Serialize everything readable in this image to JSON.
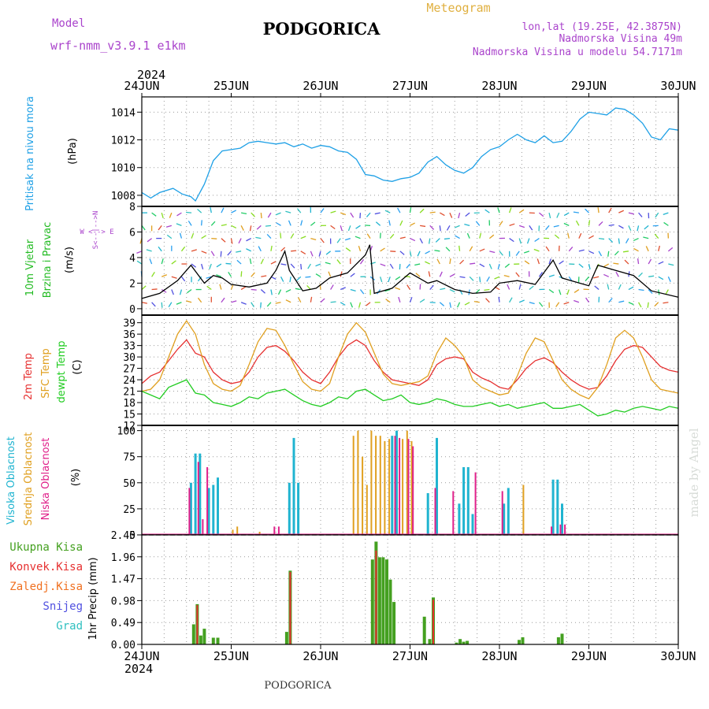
{
  "header": {
    "model_label": "Model",
    "model_name": "wrf-nmm_v3.9.1  e1km",
    "title": "PODGORICA",
    "meteogram_label": "Meteogram",
    "coords": "lon,lat (19.25E, 42.3875N)",
    "elevation": "Nadmorska Visina 49m",
    "model_elevation": "Nadmorska Visina u modelu 54.7171m",
    "year_top": "2024",
    "year_bottom": "2024",
    "footer_title": "PODGORICA",
    "watermark": "made by Angel"
  },
  "colors": {
    "pressure": "#1ea0e6",
    "wind_label": "#22bb22",
    "wind_dir_label": "#aa44cc",
    "temp2m": "#e63030",
    "sfc": "#e0a020",
    "dewpt": "#22cc22",
    "high_cloud": "#20b4d0",
    "mid_cloud": "#e0a020",
    "low_cloud": "#e0208a",
    "total_precip": "#44a020",
    "conv_precip": "#e63030",
    "frozen_precip": "#f07020",
    "snow": "#5050e0",
    "graupel": "#30c0c0",
    "model_text": "#aa44cc",
    "meteogram_text": "#e0b040"
  },
  "chart_data": [
    {
      "type": "line",
      "panel": "pressure",
      "ylabel": "Pritisak na nivou mora",
      "unit": "(hPa)",
      "x_ticks": [
        "24JUN",
        "25JUN",
        "26JUN",
        "27JUN",
        "28JUN",
        "29JUN",
        "30JUN"
      ],
      "ylim": [
        1007.2,
        1015.1
      ],
      "yticks": [
        1008,
        1010,
        1012,
        1014
      ],
      "grid": true,
      "series": [
        {
          "x": [
            0,
            0.1,
            0.2,
            0.35,
            0.45,
            0.55,
            0.6,
            0.7,
            0.8,
            0.9,
            1.0,
            1.1,
            1.2,
            1.3,
            1.4,
            1.5,
            1.6,
            1.7,
            1.8,
            1.9,
            2.0,
            2.1,
            2.2,
            2.3,
            2.4,
            2.5,
            2.6,
            2.7,
            2.8,
            2.9,
            3.0,
            3.1,
            3.2,
            3.3,
            3.4,
            3.5,
            3.6,
            3.7,
            3.8,
            3.9,
            4.0,
            4.1,
            4.2,
            4.3,
            4.4,
            4.5,
            4.6,
            4.7,
            4.8,
            4.9,
            5.0,
            5.1,
            5.2,
            5.3,
            5.4,
            5.5,
            5.6,
            5.7,
            5.8,
            5.9,
            6.0
          ],
          "values": [
            1008.2,
            1007.8,
            1008.2,
            1008.5,
            1008.1,
            1007.9,
            1007.6,
            1008.8,
            1010.5,
            1011.2,
            1011.3,
            1011.4,
            1011.8,
            1011.9,
            1011.8,
            1011.7,
            1011.8,
            1011.5,
            1011.7,
            1011.4,
            1011.6,
            1011.5,
            1011.2,
            1011.1,
            1010.6,
            1009.5,
            1009.4,
            1009.1,
            1009.0,
            1009.2,
            1009.3,
            1009.6,
            1010.4,
            1010.8,
            1010.2,
            1009.8,
            1009.6,
            1010.0,
            1010.8,
            1011.3,
            1011.5,
            1012.0,
            1012.4,
            1012.0,
            1011.8,
            1012.3,
            1011.8,
            1011.9,
            1012.6,
            1013.5,
            1014.0,
            1013.9,
            1013.8,
            1014.3,
            1014.2,
            1013.8,
            1013.2,
            1012.2,
            1012.0,
            1012.8,
            1012.7
          ]
        }
      ]
    },
    {
      "type": "line",
      "panel": "wind",
      "ylabel": "10m Vjetar Brzina i Pravac",
      "unit": "(m/s)",
      "direction_legend": "W <--> E",
      "direction_legend_vertical": "S<--|-->N",
      "ylim": [
        -0.5,
        8
      ],
      "yticks": [
        0,
        2,
        4,
        6,
        8
      ],
      "grid": true,
      "series": [
        {
          "name": "speed",
          "x": [
            0,
            0.2,
            0.4,
            0.55,
            0.7,
            0.8,
            0.9,
            1.0,
            1.2,
            1.4,
            1.5,
            1.6,
            1.65,
            1.8,
            1.95,
            2.1,
            2.3,
            2.5,
            2.55,
            2.6,
            2.8,
            3.0,
            3.2,
            3.3,
            3.5,
            3.7,
            3.9,
            4.0,
            4.2,
            4.4,
            4.6,
            4.7,
            4.8,
            5.0,
            5.1,
            5.3,
            5.5,
            5.7,
            6.0
          ],
          "values": [
            0.8,
            1.2,
            2.2,
            3.4,
            2.0,
            2.6,
            2.4,
            1.9,
            1.7,
            2.0,
            3.0,
            4.5,
            3.0,
            1.4,
            1.6,
            2.4,
            2.8,
            4.2,
            5.0,
            1.2,
            1.6,
            2.8,
            2.0,
            2.2,
            1.5,
            1.2,
            1.3,
            2.0,
            2.2,
            1.9,
            3.8,
            2.4,
            2.2,
            1.8,
            3.4,
            3.0,
            2.6,
            1.4,
            0.9
          ]
        }
      ]
    },
    {
      "type": "line",
      "panel": "temperature",
      "ylabel_lines": [
        "2m Temp",
        "SFC Temp",
        "dewpt Temp"
      ],
      "unit": "(C)",
      "ylim": [
        12,
        41
      ],
      "yticks": [
        12,
        15,
        18,
        21,
        24,
        27,
        30,
        33,
        36,
        39
      ],
      "grid": true,
      "series": [
        {
          "name": "2m Temp",
          "x": [
            0,
            0.1,
            0.2,
            0.3,
            0.4,
            0.5,
            0.6,
            0.7,
            0.8,
            0.9,
            1.0,
            1.1,
            1.2,
            1.3,
            1.4,
            1.5,
            1.6,
            1.7,
            1.8,
            1.9,
            2.0,
            2.1,
            2.2,
            2.3,
            2.4,
            2.5,
            2.6,
            2.7,
            2.8,
            2.9,
            3.0,
            3.1,
            3.2,
            3.3,
            3.4,
            3.5,
            3.6,
            3.7,
            3.8,
            3.9,
            4.0,
            4.1,
            4.2,
            4.3,
            4.4,
            4.5,
            4.6,
            4.7,
            4.8,
            4.9,
            5.0,
            5.1,
            5.2,
            5.3,
            5.4,
            5.5,
            5.6,
            5.7,
            5.8,
            5.9,
            6.0
          ],
          "values": [
            23,
            25,
            26,
            29,
            32,
            34.5,
            31,
            30,
            26,
            24,
            23,
            23.5,
            26,
            30,
            32.5,
            33,
            31.5,
            29,
            26,
            24,
            23,
            26,
            30,
            33,
            34.5,
            33,
            29,
            26,
            24,
            23.5,
            23,
            22.5,
            24,
            28,
            29.5,
            30,
            29.5,
            26,
            24.5,
            23.5,
            22,
            21.5,
            24,
            27,
            29,
            29.8,
            28.5,
            26,
            24,
            22.5,
            21.5,
            22,
            25,
            29,
            32,
            33,
            32.5,
            30,
            27.5,
            26.5,
            26
          ]
        },
        {
          "name": "SFC Temp",
          "x": [
            0,
            0.1,
            0.2,
            0.3,
            0.4,
            0.5,
            0.6,
            0.7,
            0.8,
            0.9,
            1.0,
            1.1,
            1.2,
            1.3,
            1.4,
            1.5,
            1.6,
            1.7,
            1.8,
            1.9,
            2.0,
            2.1,
            2.2,
            2.3,
            2.4,
            2.5,
            2.6,
            2.7,
            2.8,
            2.9,
            3.0,
            3.1,
            3.2,
            3.3,
            3.4,
            3.5,
            3.6,
            3.7,
            3.8,
            3.9,
            4.0,
            4.1,
            4.2,
            4.3,
            4.4,
            4.5,
            4.6,
            4.7,
            4.8,
            4.9,
            5.0,
            5.1,
            5.2,
            5.3,
            5.4,
            5.5,
            5.6,
            5.7,
            5.8,
            5.9,
            6.0
          ],
          "values": [
            21,
            21.5,
            24,
            30,
            36,
            39.5,
            36,
            28,
            23,
            21.5,
            21,
            22.5,
            28,
            34,
            37.5,
            37,
            33,
            28,
            23.5,
            21.5,
            21,
            23,
            30,
            36,
            39,
            36.5,
            31,
            25.5,
            23,
            22.5,
            23,
            23.5,
            25,
            31,
            35,
            33,
            30,
            24,
            22,
            21,
            20,
            20.5,
            25,
            31,
            35,
            34,
            29,
            24,
            21.5,
            20,
            19,
            22,
            28,
            35,
            37,
            35,
            30,
            24,
            21.5,
            21,
            20.5
          ]
        },
        {
          "name": "dewpt Temp",
          "x": [
            0,
            0.1,
            0.2,
            0.3,
            0.4,
            0.5,
            0.6,
            0.7,
            0.8,
            0.9,
            1.0,
            1.1,
            1.2,
            1.3,
            1.4,
            1.5,
            1.6,
            1.7,
            1.8,
            1.9,
            2.0,
            2.1,
            2.2,
            2.3,
            2.4,
            2.5,
            2.6,
            2.7,
            2.8,
            2.9,
            3.0,
            3.1,
            3.2,
            3.3,
            3.4,
            3.5,
            3.6,
            3.7,
            3.8,
            3.9,
            4.0,
            4.1,
            4.2,
            4.3,
            4.4,
            4.5,
            4.6,
            4.7,
            4.8,
            4.9,
            5.0,
            5.1,
            5.2,
            5.3,
            5.4,
            5.5,
            5.6,
            5.7,
            5.8,
            5.9,
            6.0
          ],
          "values": [
            21,
            20,
            19,
            22,
            23,
            24,
            20.5,
            20,
            18,
            17.5,
            17,
            18,
            19.5,
            19,
            20.5,
            21,
            21.5,
            20,
            18.5,
            17.5,
            17,
            18,
            19.5,
            19,
            21,
            21.5,
            20,
            18.5,
            19,
            20,
            18,
            17.5,
            18,
            19,
            18.5,
            17.5,
            17,
            17,
            17.5,
            18,
            17,
            17.5,
            16.5,
            17,
            17.5,
            18,
            16.5,
            16.5,
            17,
            17.5,
            16,
            14.5,
            15,
            16,
            15.5,
            16.5,
            17,
            16.5,
            16,
            17,
            16.5
          ]
        }
      ]
    },
    {
      "type": "bar",
      "panel": "clouds",
      "ylabel_lines": [
        "Visoka Oblacnost",
        "Srednja Oblacnost",
        "Niska Oblacnost"
      ],
      "unit": "(%)",
      "ylim": [
        0,
        105
      ],
      "yticks": [
        0,
        25,
        50,
        75,
        100
      ],
      "grid": true,
      "series": [
        {
          "name": "Visoka Oblacnost",
          "x": [
            0.55,
            0.6,
            0.65,
            0.75,
            0.8,
            0.85,
            1.65,
            1.7,
            1.75,
            2.8,
            2.85,
            3.2,
            3.3,
            3.55,
            3.6,
            3.65,
            3.7,
            4.05,
            4.1,
            4.6,
            4.65,
            4.7
          ],
          "values": [
            50,
            78,
            78,
            45,
            48,
            55,
            50,
            93,
            50,
            95,
            100,
            40,
            93,
            30,
            65,
            65,
            20,
            30,
            45,
            53,
            53,
            30
          ]
        },
        {
          "name": "Srednja Oblacnost",
          "x": [
            1.0,
            1.05,
            1.3,
            2.35,
            2.4,
            2.45,
            2.5,
            2.55,
            2.6,
            2.65,
            2.7,
            2.75,
            2.9,
            2.95,
            3.0,
            4.25
          ],
          "values": [
            5,
            8,
            3,
            95,
            100,
            75,
            48,
            100,
            95,
            95,
            90,
            92,
            92,
            100,
            90,
            48
          ]
        },
        {
          "name": "Niska Oblacnost",
          "x": [
            0.55,
            0.65,
            0.7,
            0.75,
            1.5,
            1.55,
            2.85,
            2.9,
            3.0,
            3.05,
            3.3,
            3.5,
            3.75,
            4.05,
            4.6,
            4.7,
            4.75
          ],
          "values": [
            45,
            70,
            15,
            65,
            8,
            8,
            95,
            93,
            92,
            85,
            45,
            42,
            60,
            42,
            8,
            10,
            10
          ]
        }
      ]
    },
    {
      "type": "bar",
      "panel": "precipitation",
      "ylabel_lines": [
        "Ukupna Kisa",
        "Konvek.Kisa",
        "Zaledj.Kisa",
        "Snijeg",
        "Grad"
      ],
      "unit": "1hr Precip (mm)",
      "ylim": [
        0,
        2.45
      ],
      "yticks": [
        0,
        0.49,
        0.98,
        1.47,
        1.96,
        2.45
      ],
      "x_ticks": [
        "24JUN",
        "25JUN",
        "26JUN",
        "27JUN",
        "28JUN",
        "29JUN",
        "30JUN"
      ],
      "grid": true,
      "series": [
        {
          "name": "Ukupna Kisa",
          "x": [
            0.58,
            0.62,
            0.66,
            0.7,
            0.8,
            0.85,
            1.62,
            1.66,
            2.58,
            2.62,
            2.66,
            2.7,
            2.74,
            2.78,
            2.82,
            3.16,
            3.22,
            3.26,
            3.52,
            3.56,
            3.6,
            3.64,
            4.22,
            4.26,
            4.66,
            4.7
          ],
          "values": [
            0.45,
            0.9,
            0.2,
            0.35,
            0.15,
            0.15,
            0.28,
            1.65,
            1.9,
            2.3,
            1.95,
            1.95,
            1.9,
            1.45,
            0.95,
            0.62,
            0.12,
            1.05,
            0.04,
            0.12,
            0.06,
            0.08,
            0.1,
            0.16,
            0.16,
            0.24
          ]
        },
        {
          "name": "Konvek.Kisa",
          "x": [
            0.62,
            1.66,
            2.62,
            3.26
          ],
          "values": [
            0.88,
            1.62,
            2.1,
            1.0
          ]
        }
      ]
    }
  ]
}
